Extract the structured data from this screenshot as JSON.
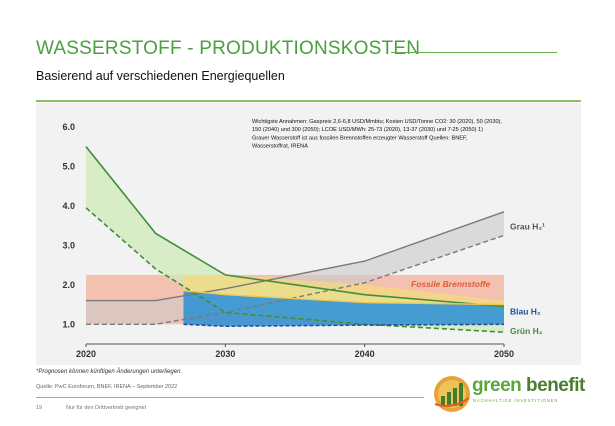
{
  "slide": {
    "title": "WASSERSTOFF - PRODUKTIONSKOSTEN",
    "subtitle": "Basierend auf verschiedenen Energiequellen",
    "footnote": "*Prognosen können künftigen Änderungen unterliegen.",
    "source": "Quelle: PwC Euroforum, BNEF, IRENA – September 2022",
    "page_number": "19",
    "page_note": "Nur für den Drittvertrieb geeignet"
  },
  "logo": {
    "word1": "green",
    "word2": "benefit",
    "tagline": "NACHHALTIGE INVESTITIONEN",
    "icon": "bar-chart-sun-icon"
  },
  "colors": {
    "accent": "#4aa03f",
    "green_line": "#3f8f3a",
    "grey_line": "#8a8a8a",
    "blue_line": "#1f4fa0",
    "fossil_band": "#f4b9a6",
    "blue_band": "#2b8fd6",
    "green_band": "#cfe9b8",
    "grey_band": "#c9c9c9",
    "yellow_band": "#f3dc7a"
  },
  "chart_data": {
    "type": "area",
    "xlim": [
      2020,
      2050
    ],
    "ylim": [
      0.5,
      6.2
    ],
    "x_ticks": [
      2020,
      2030,
      2040,
      2050
    ],
    "x_tick_labels": [
      "2020",
      "2030",
      "2040",
      "2050"
    ],
    "y_ticks": [
      1.0,
      2.0,
      3.0,
      4.0,
      5.0,
      6.0
    ],
    "y_tick_labels": [
      "1.0",
      "2.0",
      "3.0",
      "4.0",
      "5.0",
      "6.0"
    ],
    "grid": false,
    "annotation": "Wichtigste Annahmen: Gaspreis 2,6-6,8 USD/Mmbtu; Kosten USD/Tonne CO2: 30 (2020), 50 (2030), 150 (2040) und 300 (2050); LCOE USD/MWh: 25-73 (2020), 13-37 (2030) und 7-25 (2050) 1) Grauer Wasserstoff ist aus fossilen Brennstoffen erzeugter Wasserstoff Quellen: BNEF, Wasserstoffrat, IRENA",
    "series": [
      {
        "name": "Grau H₂¹",
        "color": "#8a8a8a",
        "upper": [
          [
            2020,
            1.6
          ],
          [
            2025,
            1.6
          ],
          [
            2030,
            1.9
          ],
          [
            2040,
            2.6
          ],
          [
            2050,
            3.85
          ]
        ],
        "lower": [
          [
            2020,
            1.0
          ],
          [
            2025,
            1.0
          ],
          [
            2030,
            1.3
          ],
          [
            2040,
            2.05
          ],
          [
            2050,
            3.25
          ]
        ]
      },
      {
        "name": "Grün H₂",
        "color": "#3f8f3a",
        "upper": [
          [
            2020,
            5.5
          ],
          [
            2025,
            3.3
          ],
          [
            2030,
            2.25
          ],
          [
            2040,
            1.75
          ],
          [
            2050,
            1.45
          ]
        ],
        "lower": [
          [
            2020,
            3.95
          ],
          [
            2025,
            2.4
          ],
          [
            2030,
            1.3
          ],
          [
            2040,
            1.0
          ],
          [
            2050,
            0.8
          ]
        ]
      },
      {
        "name": "Blau H₂",
        "color": "#1f4fa0",
        "upper": [
          [
            2027,
            1.85
          ],
          [
            2030,
            1.75
          ],
          [
            2040,
            1.55
          ],
          [
            2050,
            1.5
          ]
        ],
        "lower": [
          [
            2027,
            1.0
          ],
          [
            2030,
            0.95
          ],
          [
            2040,
            0.98
          ],
          [
            2050,
            1.0
          ]
        ]
      },
      {
        "name": "Fossile Brennstoffe",
        "color": "#f4b9a6",
        "upper": [
          [
            2020,
            2.25
          ],
          [
            2050,
            2.25
          ]
        ],
        "lower": [
          [
            2020,
            1.0
          ],
          [
            2050,
            1.0
          ]
        ]
      }
    ]
  }
}
